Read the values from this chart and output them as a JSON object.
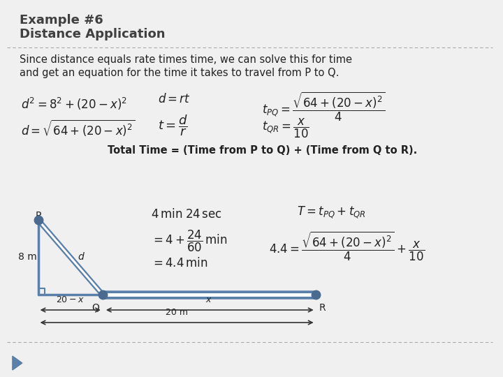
{
  "title_line1": "Example #6",
  "title_line2": "Distance Application",
  "background_color": "#f0f0f0",
  "title_color": "#404040",
  "text_color": "#222222",
  "dashed_line_color": "#aaaaaa",
  "triangle_color": "#5a7fa8",
  "dot_color": "#4a6a90",
  "arrow_color": "#333333",
  "label_8m": "8 m",
  "label_d": "d",
  "label_P": "P",
  "label_Q": "Q",
  "label_R": "R",
  "label_20mx": "$20 - x$",
  "label_x": "$x$",
  "label_20m": "20 m",
  "footer_triangle_color": "#5a7fa8"
}
